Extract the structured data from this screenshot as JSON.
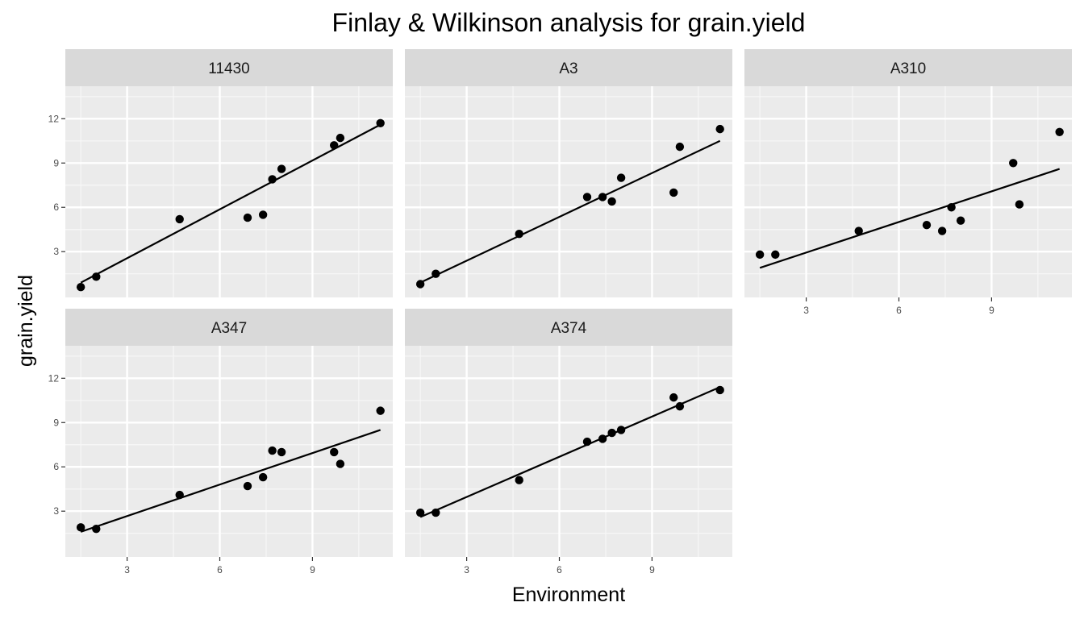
{
  "chart_data": {
    "type": "scatter",
    "title": "Finlay & Wilkinson analysis for grain.yield",
    "xlabel": "Environment",
    "ylabel": "grain.yield",
    "xlim": [
      1.0,
      11.6
    ],
    "ylim": [
      -0.1,
      14.2
    ],
    "x_ticks": [
      "3",
      "6",
      "9"
    ],
    "y_ticks": [
      "3",
      "6",
      "9",
      "12"
    ],
    "grid": true,
    "layout": "facet grid 3 columns x 2 rows",
    "facets": [
      {
        "label": "11430",
        "x": [
          1.5,
          2.0,
          4.7,
          6.9,
          7.4,
          7.7,
          8.0,
          9.7,
          9.9,
          11.2
        ],
        "y": [
          0.6,
          1.3,
          5.2,
          5.3,
          5.5,
          7.9,
          8.6,
          10.2,
          10.7,
          11.7
        ],
        "fit": [
          [
            1.5,
            0.9
          ],
          [
            11.2,
            11.6
          ]
        ]
      },
      {
        "label": "A3",
        "x": [
          1.5,
          2.0,
          4.7,
          6.9,
          7.4,
          7.7,
          8.0,
          9.7,
          9.9,
          11.2
        ],
        "y": [
          0.8,
          1.5,
          4.2,
          6.7,
          6.7,
          6.4,
          8.0,
          7.0,
          10.1,
          11.3
        ],
        "fit": [
          [
            1.5,
            0.9
          ],
          [
            11.2,
            10.5
          ]
        ]
      },
      {
        "label": "A310",
        "x": [
          1.5,
          2.0,
          4.7,
          6.9,
          7.4,
          7.7,
          8.0,
          9.7,
          9.9,
          11.2
        ],
        "y": [
          2.8,
          2.8,
          4.4,
          4.8,
          4.4,
          6.0,
          5.1,
          9.0,
          6.2,
          11.1
        ],
        "fit": [
          [
            1.5,
            1.9
          ],
          [
            11.2,
            8.6
          ]
        ]
      },
      {
        "label": "A347",
        "x": [
          1.5,
          2.0,
          4.7,
          6.9,
          7.4,
          7.7,
          8.0,
          9.7,
          9.9,
          11.2
        ],
        "y": [
          1.9,
          1.8,
          4.1,
          4.7,
          5.3,
          7.1,
          7.0,
          7.0,
          6.2,
          9.8
        ],
        "fit": [
          [
            1.5,
            1.6
          ],
          [
            11.2,
            8.5
          ]
        ]
      },
      {
        "label": "A374",
        "x": [
          1.5,
          2.0,
          4.7,
          6.9,
          7.4,
          7.7,
          8.0,
          9.7,
          9.9,
          11.2
        ],
        "y": [
          2.9,
          2.9,
          5.1,
          7.7,
          7.9,
          8.3,
          8.5,
          10.7,
          10.1,
          11.2
        ],
        "fit": [
          [
            1.5,
            2.6
          ],
          [
            11.2,
            11.4
          ]
        ]
      }
    ]
  }
}
